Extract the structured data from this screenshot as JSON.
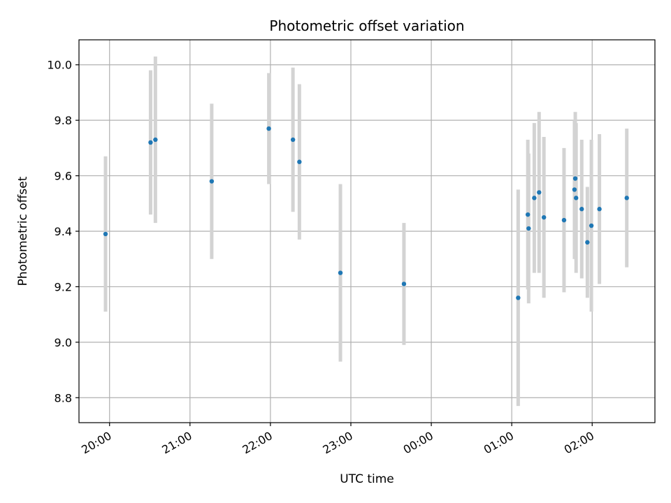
{
  "chart_data": {
    "type": "scatter",
    "title": "Photometric offset variation",
    "xlabel": "UTC time",
    "ylabel": "Photometric offset",
    "x_unit": "hours (UTC, continuing past midnight)",
    "xlim": [
      19.62,
      26.78
    ],
    "ylim": [
      8.71,
      10.09
    ],
    "grid": true,
    "x_ticks": [
      {
        "value": 20,
        "label": "20:00"
      },
      {
        "value": 21,
        "label": "21:00"
      },
      {
        "value": 22,
        "label": "22:00"
      },
      {
        "value": 23,
        "label": "23:00"
      },
      {
        "value": 24,
        "label": "00:00"
      },
      {
        "value": 25,
        "label": "01:00"
      },
      {
        "value": 26,
        "label": "02:00"
      }
    ],
    "y_ticks": [
      {
        "value": 8.8,
        "label": "8.8"
      },
      {
        "value": 9.0,
        "label": "9.0"
      },
      {
        "value": 9.2,
        "label": "9.2"
      },
      {
        "value": 9.4,
        "label": "9.4"
      },
      {
        "value": 9.6,
        "label": "9.6"
      },
      {
        "value": 9.8,
        "label": "9.8"
      },
      {
        "value": 10.0,
        "label": "10.0"
      }
    ],
    "marker_color": "#1f77b4",
    "errorbar_color": "#d3d3d3",
    "points": [
      {
        "x": 19.95,
        "y": 9.39,
        "err": 0.28
      },
      {
        "x": 20.51,
        "y": 9.72,
        "err": 0.26
      },
      {
        "x": 20.57,
        "y": 9.73,
        "err": 0.3
      },
      {
        "x": 21.27,
        "y": 9.58,
        "err": 0.28
      },
      {
        "x": 21.98,
        "y": 9.77,
        "err": 0.2
      },
      {
        "x": 22.28,
        "y": 9.73,
        "err": 0.26
      },
      {
        "x": 22.36,
        "y": 9.65,
        "err": 0.28
      },
      {
        "x": 22.87,
        "y": 9.25,
        "err": 0.32
      },
      {
        "x": 23.66,
        "y": 9.21,
        "err": 0.22
      },
      {
        "x": 25.08,
        "y": 9.16,
        "err": 0.39
      },
      {
        "x": 25.2,
        "y": 9.46,
        "err": 0.27
      },
      {
        "x": 25.21,
        "y": 9.41,
        "err": 0.27
      },
      {
        "x": 25.28,
        "y": 9.52,
        "err": 0.27
      },
      {
        "x": 25.34,
        "y": 9.54,
        "err": 0.29
      },
      {
        "x": 25.4,
        "y": 9.45,
        "err": 0.29
      },
      {
        "x": 25.65,
        "y": 9.44,
        "err": 0.26
      },
      {
        "x": 25.78,
        "y": 9.55,
        "err": 0.25
      },
      {
        "x": 25.79,
        "y": 9.59,
        "err": 0.24
      },
      {
        "x": 25.8,
        "y": 9.52,
        "err": 0.27
      },
      {
        "x": 25.87,
        "y": 9.48,
        "err": 0.25
      },
      {
        "x": 25.94,
        "y": 9.36,
        "err": 0.2
      },
      {
        "x": 25.99,
        "y": 9.42,
        "err": 0.31
      },
      {
        "x": 26.09,
        "y": 9.48,
        "err": 0.27
      },
      {
        "x": 26.43,
        "y": 9.52,
        "err": 0.25
      }
    ]
  }
}
